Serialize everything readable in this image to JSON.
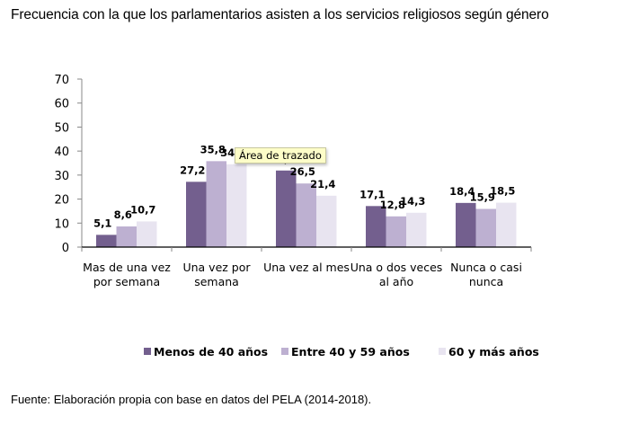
{
  "title": "Frecuencia con la que los parlamentarios asisten a los servicios religiosos según género",
  "source": "Fuente: Elaboración propia con base en datos del PELA (2014-2018).",
  "tooltip": "Área de trazado",
  "colors": {
    "series_1": "#735f8e",
    "series_2": "#bdb0d1",
    "series_3": "#e8e4f0",
    "axis": "#000000",
    "tick": "#888888"
  },
  "chart_data": {
    "type": "bar",
    "title": "Frecuencia con la que los parlamentarios asisten a los servicios religiosos según género",
    "xlabel": "",
    "ylabel": "",
    "ylim": [
      0,
      70
    ],
    "yticks": [
      0,
      10,
      20,
      30,
      40,
      50,
      60,
      70
    ],
    "grid": false,
    "legend_position": "bottom",
    "categories": [
      [
        "Mas de una vez",
        "por semana"
      ],
      [
        "Una vez por",
        "semana"
      ],
      [
        "Una vez al mes"
      ],
      [
        "Una o dos veces",
        "al año"
      ],
      [
        "Nunca o casi",
        "nunca"
      ]
    ],
    "series": [
      {
        "name": "Menos de 40 años",
        "values": [
          5.1,
          27.2,
          31.9,
          17.1,
          18.4
        ],
        "labels": [
          "5,1",
          "27,2",
          "31,9",
          "17,1",
          "18,4"
        ]
      },
      {
        "name": "Entre 40 y 59 años",
        "values": [
          8.6,
          35.8,
          26.5,
          12.8,
          15.9
        ],
        "labels": [
          "8,6",
          "35,8",
          "26,5",
          "12,8",
          "15,9"
        ]
      },
      {
        "name": "60 y más años",
        "values": [
          10.7,
          34.5,
          21.4,
          14.3,
          18.5
        ],
        "labels": [
          "10,7",
          "34,5",
          "21,4",
          "14,3",
          "18,5"
        ]
      }
    ]
  }
}
